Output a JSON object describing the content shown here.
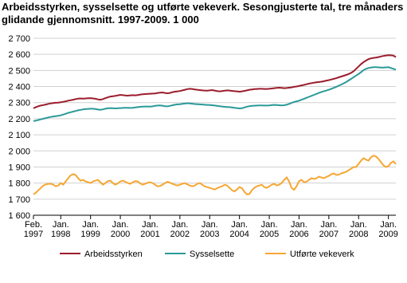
{
  "chart_data": {
    "type": "line",
    "title": "Arbeidsstyrken, sysselsette og utførte vekeverk. Sesongjusterte tal, tre månaders glidande gjennomsnitt. 1997-2009.  1 000",
    "categories": [
      "Feb. 1997",
      null,
      null,
      null,
      null,
      null,
      null,
      null,
      null,
      null,
      null,
      "Jan. 1998",
      null,
      null,
      null,
      null,
      null,
      null,
      null,
      null,
      null,
      null,
      null,
      "Jan. 1999",
      null,
      null,
      null,
      null,
      null,
      null,
      null,
      null,
      null,
      null,
      null,
      "Jan. 2000",
      null,
      null,
      null,
      null,
      null,
      null,
      null,
      null,
      null,
      null,
      null,
      "Jan. 2001",
      null,
      null,
      null,
      null,
      null,
      null,
      null,
      null,
      null,
      null,
      null,
      "Jan. 2002",
      null,
      null,
      null,
      null,
      null,
      null,
      null,
      null,
      null,
      null,
      null,
      "Jan. 2003",
      null,
      null,
      null,
      null,
      null,
      null,
      null,
      null,
      null,
      null,
      null,
      "Jan. 2004",
      null,
      null,
      null,
      null,
      null,
      null,
      null,
      null,
      null,
      null,
      null,
      "Jan. 2005",
      null,
      null,
      null,
      null,
      null,
      null,
      null,
      null,
      null,
      null,
      null,
      "Jan. 2006",
      null,
      null,
      null,
      null,
      null,
      null,
      null,
      null,
      null,
      null,
      null,
      "Jan. 2007",
      null,
      null,
      null,
      null,
      null,
      null,
      null,
      null,
      null,
      null,
      null,
      "Jan. 2008",
      null,
      null,
      null,
      null,
      null,
      null,
      null,
      null,
      null,
      null,
      null,
      "Jan. 2009",
      null,
      null,
      null
    ],
    "series": [
      {
        "name": "Arbeidsstyrken",
        "color": "#9b1c2c",
        "values": [
          2265,
          2272,
          2278,
          2282,
          2285,
          2288,
          2292,
          2295,
          2297,
          2299,
          2300,
          2302,
          2305,
          2308,
          2312,
          2315,
          2318,
          2322,
          2325,
          2326,
          2325,
          2326,
          2327,
          2328,
          2326,
          2324,
          2320,
          2318,
          2322,
          2328,
          2333,
          2338,
          2340,
          2342,
          2345,
          2348,
          2346,
          2344,
          2343,
          2345,
          2346,
          2345,
          2347,
          2350,
          2352,
          2353,
          2354,
          2355,
          2356,
          2357,
          2360,
          2362,
          2363,
          2360,
          2358,
          2360,
          2365,
          2368,
          2370,
          2372,
          2376,
          2380,
          2384,
          2386,
          2385,
          2382,
          2380,
          2378,
          2376,
          2375,
          2374,
          2376,
          2378,
          2375,
          2372,
          2370,
          2372,
          2374,
          2376,
          2375,
          2373,
          2371,
          2370,
          2368,
          2370,
          2373,
          2376,
          2380,
          2382,
          2384,
          2385,
          2386,
          2386,
          2385,
          2385,
          2386,
          2388,
          2390,
          2392,
          2393,
          2392,
          2390,
          2391,
          2393,
          2395,
          2398,
          2400,
          2403,
          2407,
          2410,
          2414,
          2418,
          2421,
          2424,
          2426,
          2428,
          2430,
          2433,
          2437,
          2440,
          2444,
          2448,
          2452,
          2457,
          2462,
          2467,
          2472,
          2478,
          2485,
          2495,
          2510,
          2525,
          2540,
          2552,
          2562,
          2570,
          2575,
          2578,
          2580,
          2583,
          2587,
          2590,
          2593,
          2595,
          2594,
          2592,
          2583
        ]
      },
      {
        "name": "Sysselsette",
        "color": "#2a9a98",
        "values": [
          2185,
          2188,
          2192,
          2196,
          2200,
          2204,
          2208,
          2211,
          2214,
          2216,
          2218,
          2221,
          2226,
          2231,
          2236,
          2240,
          2244,
          2248,
          2252,
          2255,
          2258,
          2260,
          2261,
          2262,
          2262,
          2260,
          2257,
          2255,
          2258,
          2262,
          2265,
          2266,
          2265,
          2264,
          2265,
          2266,
          2267,
          2268,
          2268,
          2267,
          2268,
          2270,
          2272,
          2274,
          2275,
          2276,
          2276,
          2275,
          2277,
          2280,
          2282,
          2283,
          2281,
          2278,
          2277,
          2280,
          2284,
          2287,
          2289,
          2290,
          2292,
          2294,
          2296,
          2295,
          2293,
          2291,
          2290,
          2289,
          2288,
          2287,
          2286,
          2285,
          2284,
          2282,
          2280,
          2278,
          2276,
          2274,
          2273,
          2272,
          2270,
          2268,
          2266,
          2264,
          2265,
          2270,
          2275,
          2278,
          2280,
          2281,
          2282,
          2283,
          2283,
          2282,
          2282,
          2283,
          2285,
          2286,
          2285,
          2284,
          2283,
          2284,
          2287,
          2292,
          2298,
          2304,
          2308,
          2312,
          2318,
          2324,
          2330,
          2336,
          2342,
          2348,
          2354,
          2360,
          2366,
          2371,
          2375,
          2380,
          2386,
          2392,
          2398,
          2405,
          2412,
          2420,
          2428,
          2438,
          2448,
          2458,
          2468,
          2478,
          2490,
          2502,
          2510,
          2515,
          2518,
          2520,
          2520,
          2519,
          2518,
          2518,
          2519,
          2520,
          2515,
          2510,
          2505
        ]
      },
      {
        "name": "Utførte vekeverk",
        "color": "#f5a733",
        "values": [
          1730,
          1740,
          1755,
          1770,
          1785,
          1792,
          1795,
          1795,
          1790,
          1780,
          1785,
          1800,
          1790,
          1810,
          1830,
          1848,
          1855,
          1850,
          1830,
          1815,
          1820,
          1810,
          1805,
          1800,
          1810,
          1815,
          1820,
          1805,
          1790,
          1800,
          1812,
          1815,
          1800,
          1790,
          1798,
          1810,
          1815,
          1808,
          1800,
          1795,
          1805,
          1812,
          1810,
          1798,
          1790,
          1795,
          1802,
          1805,
          1800,
          1790,
          1780,
          1782,
          1790,
          1800,
          1808,
          1802,
          1795,
          1790,
          1785,
          1790,
          1795,
          1800,
          1792,
          1785,
          1780,
          1785,
          1795,
          1800,
          1790,
          1780,
          1775,
          1770,
          1765,
          1760,
          1768,
          1775,
          1780,
          1790,
          1785,
          1770,
          1755,
          1748,
          1760,
          1775,
          1768,
          1745,
          1730,
          1732,
          1755,
          1770,
          1780,
          1785,
          1790,
          1775,
          1770,
          1780,
          1790,
          1795,
          1785,
          1790,
          1800,
          1820,
          1835,
          1810,
          1770,
          1758,
          1780,
          1812,
          1820,
          1805,
          1808,
          1820,
          1830,
          1825,
          1830,
          1840,
          1835,
          1830,
          1838,
          1845,
          1855,
          1860,
          1850,
          1852,
          1860,
          1865,
          1870,
          1880,
          1890,
          1900,
          1900,
          1920,
          1940,
          1955,
          1945,
          1940,
          1960,
          1970,
          1965,
          1950,
          1930,
          1910,
          1900,
          1905,
          1925,
          1935,
          1918
        ]
      }
    ],
    "ylim": [
      1600,
      2700
    ],
    "yticks": [
      {
        "value": 1600,
        "label": "1 600"
      },
      {
        "value": 1700,
        "label": "1 700"
      },
      {
        "value": 1800,
        "label": "1 800"
      },
      {
        "value": 1900,
        "label": "1 900"
      },
      {
        "value": 2000,
        "label": "2 000"
      },
      {
        "value": 2100,
        "label": "2 100"
      },
      {
        "value": 2200,
        "label": "2 200"
      },
      {
        "value": 2300,
        "label": "2 300"
      },
      {
        "value": 2400,
        "label": "2 400"
      },
      {
        "value": 2500,
        "label": "2 500"
      },
      {
        "value": 2600,
        "label": "2 600"
      },
      {
        "value": 2700,
        "label": "2 700"
      }
    ],
    "grid": true,
    "legend": "bottom"
  }
}
